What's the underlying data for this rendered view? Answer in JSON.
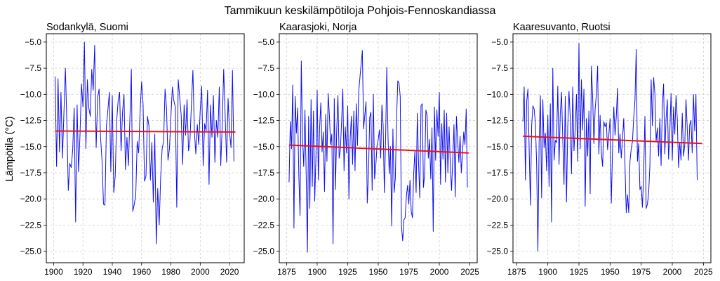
{
  "figure": {
    "title": "Tammikuun keskilämpötiloja Pohjois-Fennoskandiassa",
    "ylabel": "Lämpötila (°C)",
    "colors": {
      "series": "#1010ee",
      "trend": "#ee1111"
    }
  },
  "chart_data": [
    {
      "type": "line",
      "title": "Sodankylä, Suomi",
      "xlim": [
        1895,
        2030
      ],
      "ylim": [
        -26.1,
        -4.2
      ],
      "xticks": [
        1900,
        1920,
        1940,
        1960,
        1980,
        2000,
        2020
      ],
      "yticks": [
        -25.0,
        -22.5,
        -20.0,
        -17.5,
        -15.0,
        -12.5,
        -10.0,
        -7.5,
        -5.0
      ],
      "ytick_labels": [
        "−25.0",
        "−22.5",
        "−20.0",
        "−17.5",
        "−15.0",
        "−12.5",
        "−10.0",
        "−7.5",
        "−5.0"
      ],
      "grid": true,
      "series": [
        {
          "x_start": 1901,
          "values": [
            -8.3,
            -16.9,
            -8.5,
            -15.5,
            -9.8,
            -16.1,
            -11.8,
            -7.5,
            -12.6,
            -19.2,
            -16.6,
            -17.0,
            -15.3,
            -11.3,
            -22.2,
            -11.0,
            -17.4,
            -13.8,
            -9.0,
            -11.2,
            -5.0,
            -15.2,
            -8.6,
            -11.3,
            -12.1,
            -7.6,
            -9.6,
            -5.3,
            -15.1,
            -10.3,
            -9.5,
            -14.1,
            -16.3,
            -20.5,
            -20.6,
            -13.0,
            -11.5,
            -9.8,
            -17.4,
            -10.1,
            -19.4,
            -17.8,
            -12.5,
            -10.6,
            -9.8,
            -15.4,
            -11.7,
            -10.0,
            -17.2,
            -14.1,
            -16.8,
            -12.4,
            -7.6,
            -21.2,
            -20.5,
            -19.7,
            -14.5,
            -15.6,
            -11.6,
            -8.8,
            -10.9,
            -18.3,
            -17.8,
            -12.1,
            -13.0,
            -18.2,
            -14.6,
            -20.3,
            -13.8,
            -24.3,
            -19.0,
            -22.5,
            -18.0,
            -15.2,
            -14.5,
            -9.5,
            -11.3,
            -16.3,
            -15.2,
            -12.1,
            -9.3,
            -10.6,
            -11.2,
            -20.8,
            -8.6,
            -10.3,
            -12.0,
            -16.7,
            -11.0,
            -13.9,
            -10.5,
            -15.4,
            -14.4,
            -10.9,
            -7.7,
            -13.5,
            -15.7,
            -12.9,
            -14.8,
            -11.5,
            -9.2,
            -16.8,
            -12.8,
            -13.5,
            -9.6,
            -18.6,
            -11.0,
            -14.1,
            -10.1,
            -16.5,
            -12.5,
            -14.1,
            -9.3,
            -16.8,
            -12.9,
            -7.6,
            -12.0,
            -16.5,
            -10.4,
            -13.6,
            -15.1,
            -7.7,
            -16.4
          ]
        }
      ],
      "trend": {
        "x": [
          1901,
          2024
        ],
        "y": [
          -13.5,
          -13.6
        ]
      }
    },
    {
      "type": "line",
      "title": "Kaarasjoki, Norja",
      "xlim": [
        1869,
        2031
      ],
      "ylim": [
        -26.1,
        -4.2
      ],
      "xticks": [
        1875,
        1900,
        1925,
        1950,
        1975,
        2000,
        2025
      ],
      "yticks": [
        -25.0,
        -22.5,
        -20.0,
        -17.5,
        -15.0,
        -12.5,
        -10.0,
        -7.5,
        -5.0
      ],
      "ytick_labels": [
        "−25.0",
        "−22.5",
        "−20.0",
        "−17.5",
        "−15.0",
        "−12.5",
        "−10.0",
        "−7.5",
        "−5.0"
      ],
      "grid": true,
      "series": [
        {
          "x_start": 1877,
          "values": [
            -18.4,
            -12.6,
            -15.2,
            -9.1,
            -22.8,
            -10.2,
            -13.7,
            -11.3,
            -17.8,
            -21.6,
            -6.8,
            -14.1,
            -16.9,
            -11.5,
            -17.6,
            -25.1,
            -12.1,
            -20.9,
            -10.5,
            -18.8,
            -11.6,
            -20.2,
            -15.9,
            -9.6,
            -18.2,
            -13.2,
            -10.8,
            -15.5,
            -13.6,
            -19.3,
            -11.9,
            -16.4,
            -9.9,
            -12.0,
            -14.8,
            -13.8,
            -24.3,
            -10.4,
            -19.1,
            -13.4,
            -10.1,
            -16.1,
            -15.3,
            -12.6,
            -9.5,
            -17.3,
            -13.1,
            -15.6,
            -11.1,
            -20.0,
            -14.3,
            -12.1,
            -16.7,
            -11.6,
            -17.3,
            -10.9,
            -14.9,
            -9.8,
            -8.4,
            -7.1,
            -5.8,
            -13.3,
            -12.0,
            -10.7,
            -20.4,
            -17.6,
            -12.2,
            -11.7,
            -19.2,
            -10.0,
            -18.1,
            -16.8,
            -14.9,
            -14.3,
            -13.4,
            -16.1,
            -11.0,
            -12.9,
            -19.4,
            -14.4,
            -7.4,
            -14.1,
            -17.6,
            -15.0,
            -22.6,
            -13.3,
            -19.4,
            -18.0,
            -12.3,
            -8.7,
            -8.9,
            -10.2,
            -22.6,
            -24.0,
            -22.0,
            -21.8,
            -19.8,
            -18.7,
            -20.5,
            -18.2,
            -21.2,
            -21.8,
            -17.6,
            -15.4,
            -19.4,
            -11.8,
            -16.6,
            -19.9,
            -11.1,
            -10.9,
            -18.9,
            -17.6,
            -11.5,
            -12.0,
            -16.1,
            -14.3,
            -18.1,
            -13.2,
            -23.1,
            -11.2,
            -16.3,
            -11.5,
            -14.0,
            -9.8,
            -18.6,
            -12.8,
            -16.2,
            -11.5,
            -18.4,
            -11.8,
            -17.5,
            -13.1,
            -16.7,
            -19.2,
            -16.1,
            -12.9,
            -19.8,
            -12.1,
            -14.4,
            -16.5,
            -14.0,
            -17.5,
            -15.5,
            -13.6,
            -14.8,
            -11.4,
            -18.9
          ]
        }
      ],
      "trend": {
        "x": [
          1877,
          2024
        ],
        "y": [
          -14.85,
          -15.6
        ]
      }
    },
    {
      "type": "line",
      "title": "Kaaresuvanto, Ruotsi",
      "xlim": [
        1872,
        2031
      ],
      "ylim": [
        -26.1,
        -4.2
      ],
      "xticks": [
        1875,
        1900,
        1925,
        1950,
        1975,
        2000,
        2025
      ],
      "yticks": [
        -25.0,
        -22.5,
        -20.0,
        -17.5,
        -15.0,
        -12.5,
        -10.0,
        -7.5,
        -5.0
      ],
      "ytick_labels": [
        "−25.0",
        "−22.5",
        "−20.0",
        "−17.5",
        "−15.0",
        "−12.5",
        "−10.0",
        "−7.5",
        "−5.0"
      ],
      "grid": true,
      "series": [
        {
          "x_start": 1880,
          "values": [
            -12.6,
            -9.3,
            -18.2,
            -10.7,
            -9.5,
            -15.3,
            -20.6,
            -13.0,
            -11.1,
            -11.4,
            -12.7,
            -16.6,
            -25.0,
            -14.5,
            -10.1,
            -19.9,
            -10.5,
            -15.1,
            -13.7,
            -17.3,
            -12.0,
            -18.8,
            -10.9,
            -22.2,
            -7.5,
            -16.3,
            -14.4,
            -14.6,
            -9.2,
            -16.7,
            -11.8,
            -9.8,
            -14.3,
            -18.6,
            -10.2,
            -20.3,
            -13.1,
            -9.7,
            -12.2,
            -17.6,
            -9.3,
            -15.4,
            -13.3,
            -10.0,
            -16.4,
            -5.1,
            -15.2,
            -8.6,
            -13.4,
            -9.5,
            -20.7,
            -12.3,
            -15.9,
            -11.6,
            -19.5,
            -7.3,
            -10.2,
            -14.7,
            -11.4,
            -10.0,
            -7.3,
            -15.7,
            -12.0,
            -15.6,
            -16.9,
            -12.6,
            -13.1,
            -12.7,
            -15.3,
            -13.9,
            -12.3,
            -20.4,
            -15.3,
            -11.2,
            -13.9,
            -12.1,
            -9.4,
            -15.6,
            -13.8,
            -16.1,
            -14.2,
            -12.3,
            -16.8,
            -21.3,
            -19.6,
            -21.3,
            -16.4,
            -15.2,
            -14.5,
            -12.2,
            -10.6,
            -5.7,
            -16.4,
            -14.7,
            -19.1,
            -18.8,
            -20.8,
            -17.5,
            -12.1,
            -20.9,
            -20.5,
            -19.4,
            -16.8,
            -8.6,
            -13.0,
            -8.4,
            -9.9,
            -14.5,
            -13.2,
            -15.9,
            -12.3,
            -16.8,
            -11.1,
            -9.0,
            -15.7,
            -12.3,
            -10.5,
            -16.2,
            -13.6,
            -9.9,
            -16.3,
            -11.2,
            -13.8,
            -10.1,
            -12.3,
            -17.0,
            -14.6,
            -16.3,
            -11.8,
            -15.9,
            -14.9,
            -10.5,
            -13.2,
            -16.3,
            -12.9,
            -12.5,
            -15.6,
            -10.0,
            -13.5,
            -10.0,
            -18.2
          ]
        }
      ],
      "trend": {
        "x": [
          1880,
          2024
        ],
        "y": [
          -14.0,
          -14.7
        ]
      }
    }
  ]
}
